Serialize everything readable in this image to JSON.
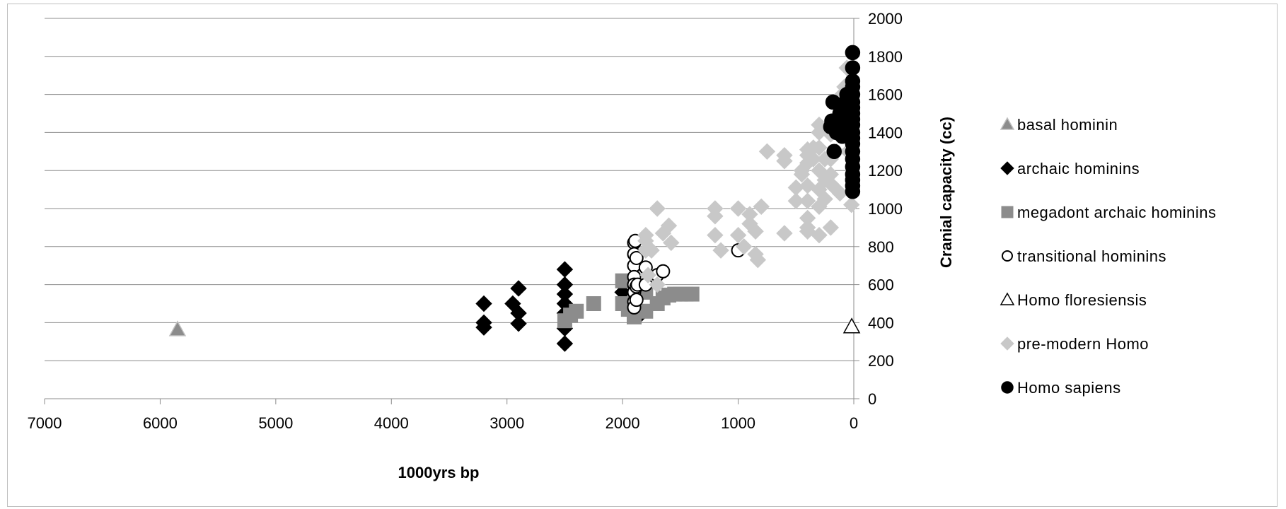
{
  "chart_data": {
    "type": "scatter",
    "title": "",
    "xlabel": "1000yrs bp",
    "ylabel": "Cranial capacity (cc)",
    "xlim": [
      7000,
      0
    ],
    "x_reversed": true,
    "ylim": [
      0,
      2000
    ],
    "y_axis_side": "right",
    "x_ticks": [
      7000,
      6000,
      5000,
      4000,
      3000,
      2000,
      1000,
      0
    ],
    "y_ticks": [
      0,
      200,
      400,
      600,
      800,
      1000,
      1200,
      1400,
      1600,
      1800,
      2000
    ],
    "grid": "horizontal",
    "legend_placement": "right",
    "series": [
      {
        "name": "basal hominin",
        "marker": "triangle",
        "color": "#8c8c8c",
        "stroke": "#bfbfbf",
        "points": [
          [
            5850,
            365
          ]
        ]
      },
      {
        "name": "archaic hominins",
        "marker": "diamond",
        "color": "#000000",
        "stroke": "#000000",
        "points": [
          [
            3200,
            500
          ],
          [
            3200,
            400
          ],
          [
            3200,
            375
          ],
          [
            2950,
            500
          ],
          [
            2900,
            580
          ],
          [
            2900,
            450
          ],
          [
            2900,
            395
          ],
          [
            2500,
            680
          ],
          [
            2500,
            600
          ],
          [
            2500,
            550
          ],
          [
            2500,
            500
          ],
          [
            2500,
            450
          ],
          [
            2500,
            370
          ],
          [
            2500,
            290
          ],
          [
            2000,
            560
          ],
          [
            1900,
            460
          ],
          [
            1850,
            440
          ]
        ]
      },
      {
        "name": "megadont archaic hominins",
        "marker": "square",
        "color": "#8c8c8c",
        "stroke": "#8c8c8c",
        "points": [
          [
            2500,
            410
          ],
          [
            2450,
            440
          ],
          [
            2400,
            460
          ],
          [
            2250,
            500
          ],
          [
            2000,
            620
          ],
          [
            2000,
            500
          ],
          [
            1950,
            470
          ],
          [
            1900,
            430
          ],
          [
            1800,
            560
          ],
          [
            1800,
            460
          ],
          [
            1700,
            500
          ],
          [
            1650,
            530
          ],
          [
            1600,
            545
          ],
          [
            1550,
            550
          ],
          [
            1500,
            550
          ],
          [
            1450,
            550
          ],
          [
            1400,
            550
          ]
        ]
      },
      {
        "name": "transitional hominins",
        "marker": "circle-open",
        "color": "#ffffff",
        "stroke": "#000000",
        "points": [
          [
            1900,
            820
          ],
          [
            1900,
            760
          ],
          [
            1900,
            700
          ],
          [
            1900,
            640
          ],
          [
            1900,
            600
          ],
          [
            1900,
            560
          ],
          [
            1900,
            510
          ],
          [
            1900,
            480
          ],
          [
            1880,
            520
          ],
          [
            1880,
            590
          ],
          [
            1870,
            600
          ],
          [
            1800,
            690
          ],
          [
            1800,
            600
          ],
          [
            1700,
            650
          ],
          [
            1650,
            670
          ],
          [
            1000,
            780
          ],
          [
            1880,
            740
          ],
          [
            1890,
            830
          ]
        ]
      },
      {
        "name": "Homo floresiensis",
        "marker": "triangle-open",
        "color": "#ffffff",
        "stroke": "#000000",
        "points": [
          [
            18,
            380
          ]
        ]
      },
      {
        "name": "pre-modern Homo",
        "marker": "diamond",
        "color": "#c8c8c8",
        "stroke": "#c8c8c8",
        "points": [
          [
            1800,
            860
          ],
          [
            1800,
            830
          ],
          [
            1800,
            780
          ],
          [
            1750,
            780
          ],
          [
            1700,
            1000
          ],
          [
            1650,
            870
          ],
          [
            1600,
            910
          ],
          [
            1580,
            820
          ],
          [
            1780,
            650
          ],
          [
            1700,
            600
          ],
          [
            1200,
            1000
          ],
          [
            1200,
            960
          ],
          [
            1200,
            860
          ],
          [
            1150,
            780
          ],
          [
            1000,
            1000
          ],
          [
            1000,
            860
          ],
          [
            950,
            800
          ],
          [
            900,
            970
          ],
          [
            900,
            920
          ],
          [
            850,
            880
          ],
          [
            850,
            760
          ],
          [
            830,
            730
          ],
          [
            800,
            1010
          ],
          [
            750,
            1300
          ],
          [
            600,
            1280
          ],
          [
            600,
            1250
          ],
          [
            600,
            870
          ],
          [
            500,
            1110
          ],
          [
            500,
            1040
          ],
          [
            450,
            1200
          ],
          [
            450,
            1180
          ],
          [
            400,
            1310
          ],
          [
            400,
            1280
          ],
          [
            400,
            1240
          ],
          [
            400,
            1120
          ],
          [
            400,
            1040
          ],
          [
            400,
            950
          ],
          [
            400,
            900
          ],
          [
            400,
            880
          ],
          [
            350,
            1320
          ],
          [
            350,
            1260
          ],
          [
            300,
            1440
          ],
          [
            300,
            1400
          ],
          [
            300,
            1320
          ],
          [
            300,
            1200
          ],
          [
            300,
            1100
          ],
          [
            300,
            1010
          ],
          [
            300,
            860
          ],
          [
            250,
            1260
          ],
          [
            250,
            1150
          ],
          [
            200,
            1390
          ],
          [
            200,
            1260
          ],
          [
            200,
            1180
          ],
          [
            200,
            1130
          ],
          [
            200,
            900
          ],
          [
            150,
            1300
          ],
          [
            150,
            1100
          ],
          [
            120,
            1080
          ],
          [
            100,
            1600
          ],
          [
            100,
            1500
          ],
          [
            80,
            1640
          ],
          [
            60,
            1740
          ],
          [
            50,
            1300
          ],
          [
            20,
            1020
          ],
          [
            250,
            1050
          ]
        ]
      },
      {
        "name": "Homo sapiens",
        "marker": "circle",
        "color": "#000000",
        "stroke": "#000000",
        "points": [
          [
            10,
            1820
          ],
          [
            10,
            1740
          ],
          [
            10,
            1670
          ],
          [
            10,
            1640
          ],
          [
            10,
            1600
          ],
          [
            10,
            1560
          ],
          [
            10,
            1530
          ],
          [
            10,
            1500
          ],
          [
            10,
            1470
          ],
          [
            10,
            1440
          ],
          [
            10,
            1400
          ],
          [
            10,
            1370
          ],
          [
            10,
            1340
          ],
          [
            10,
            1300
          ],
          [
            10,
            1260
          ],
          [
            10,
            1220
          ],
          [
            10,
            1180
          ],
          [
            10,
            1150
          ],
          [
            10,
            1120
          ],
          [
            10,
            1090
          ],
          [
            40,
            1510
          ],
          [
            40,
            1450
          ],
          [
            40,
            1390
          ],
          [
            60,
            1600
          ],
          [
            70,
            1480
          ],
          [
            70,
            1420
          ],
          [
            90,
            1550
          ],
          [
            100,
            1380
          ],
          [
            120,
            1500
          ],
          [
            150,
            1450
          ],
          [
            150,
            1400
          ],
          [
            170,
            1300
          ],
          [
            180,
            1560
          ],
          [
            190,
            1460
          ],
          [
            200,
            1430
          ]
        ]
      }
    ]
  }
}
